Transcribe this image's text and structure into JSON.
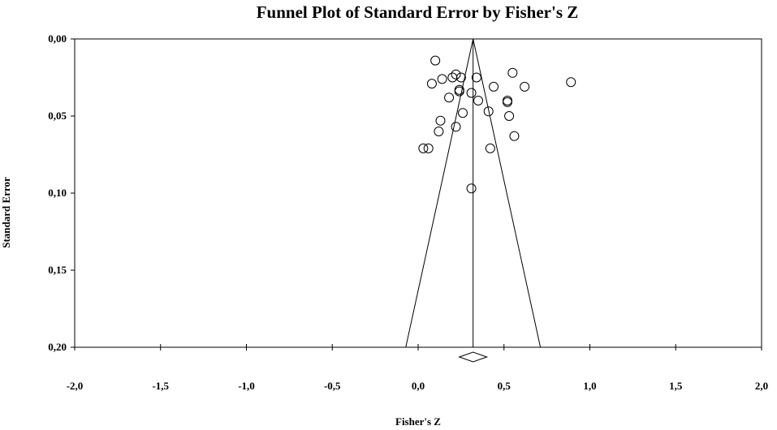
{
  "chart_data": {
    "type": "scatter",
    "title": "Funnel Plot of Standard Error by Fisher's Z",
    "xlabel": "Fisher's Z",
    "ylabel": "Standard Error",
    "xlim": [
      -2.0,
      2.0
    ],
    "ylim": [
      0.2,
      0.0
    ],
    "y_inverted": true,
    "x_ticks": [
      -2.0,
      -1.5,
      -1.0,
      -0.5,
      0.0,
      0.5,
      1.0,
      1.5,
      2.0
    ],
    "x_tick_labels": [
      "-2,0",
      "-1,5",
      "-1,0",
      "-0,5",
      "0,0",
      "0,5",
      "1,0",
      "1,5",
      "2,0"
    ],
    "y_ticks": [
      0.0,
      0.05,
      0.1,
      0.15,
      0.2
    ],
    "y_tick_labels": [
      "0,00",
      "0,05",
      "0,10",
      "0,15",
      "0,20"
    ],
    "pooled_effect": 0.32,
    "funnel_z": 1.96,
    "summary_diamond": {
      "center": 0.32,
      "lower": 0.24,
      "upper": 0.4
    },
    "points": [
      {
        "x": 0.1,
        "y": 0.014
      },
      {
        "x": 0.08,
        "y": 0.029
      },
      {
        "x": 0.14,
        "y": 0.026
      },
      {
        "x": 0.2,
        "y": 0.025
      },
      {
        "x": 0.22,
        "y": 0.023
      },
      {
        "x": 0.25,
        "y": 0.025
      },
      {
        "x": 0.24,
        "y": 0.033
      },
      {
        "x": 0.24,
        "y": 0.034
      },
      {
        "x": 0.18,
        "y": 0.038
      },
      {
        "x": 0.31,
        "y": 0.035
      },
      {
        "x": 0.34,
        "y": 0.025
      },
      {
        "x": 0.35,
        "y": 0.04
      },
      {
        "x": 0.26,
        "y": 0.048
      },
      {
        "x": 0.13,
        "y": 0.053
      },
      {
        "x": 0.22,
        "y": 0.057
      },
      {
        "x": 0.12,
        "y": 0.06
      },
      {
        "x": 0.03,
        "y": 0.071
      },
      {
        "x": 0.06,
        "y": 0.071
      },
      {
        "x": 0.44,
        "y": 0.031
      },
      {
        "x": 0.41,
        "y": 0.047
      },
      {
        "x": 0.42,
        "y": 0.071
      },
      {
        "x": 0.52,
        "y": 0.04
      },
      {
        "x": 0.52,
        "y": 0.041
      },
      {
        "x": 0.53,
        "y": 0.05
      },
      {
        "x": 0.55,
        "y": 0.022
      },
      {
        "x": 0.56,
        "y": 0.063
      },
      {
        "x": 0.62,
        "y": 0.031
      },
      {
        "x": 0.89,
        "y": 0.028
      },
      {
        "x": 0.31,
        "y": 0.097
      }
    ]
  }
}
